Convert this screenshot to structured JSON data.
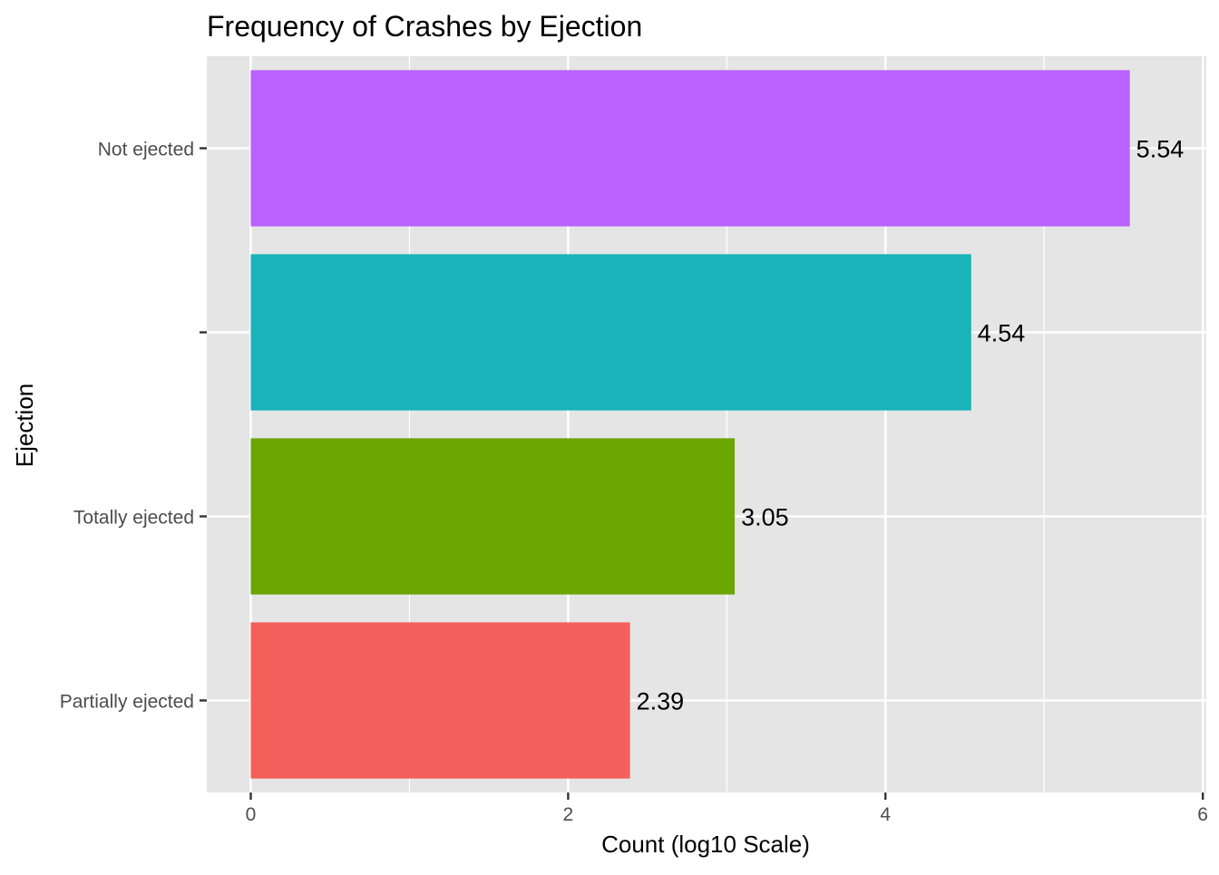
{
  "chart_data": {
    "type": "bar",
    "orientation": "horizontal",
    "title": "Frequency of Crashes by Ejection",
    "xlabel": "Count (log10 Scale)",
    "ylabel": "Ejection",
    "categories": [
      "Not ejected",
      "",
      "Totally ejected",
      "Partially ejected"
    ],
    "values": [
      5.54,
      4.54,
      3.05,
      2.39
    ],
    "data_labels": [
      "5.54",
      "4.54",
      "3.05",
      "2.39"
    ],
    "colors": [
      "#B962FF",
      "#19B3B9",
      "#6BA503",
      "#F3605C"
    ],
    "xlim": [
      0,
      6
    ],
    "x_ticks": [
      0,
      2,
      4,
      6
    ],
    "x_tick_labels": [
      "0",
      "2",
      "4",
      "6"
    ],
    "grid": true,
    "legend": "none",
    "panel_background": "#E5E5E5",
    "grid_color": "#FFFFFF"
  }
}
